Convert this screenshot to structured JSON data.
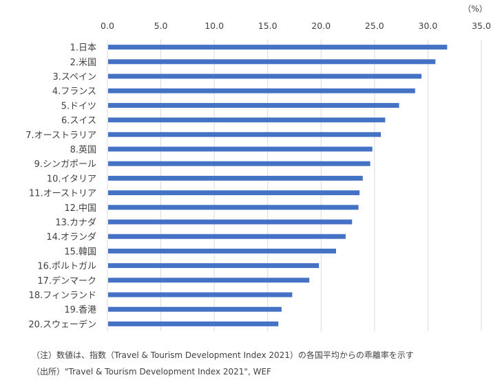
{
  "chart_data": {
    "type": "bar",
    "orientation": "horizontal",
    "title": "",
    "unit_label": "（%）",
    "xlim": [
      0,
      35
    ],
    "x_ticks": [
      "0.0",
      "5.0",
      "10.0",
      "15.0",
      "20.0",
      "25.0",
      "30.0",
      "35.0"
    ],
    "x_tick_values": [
      0,
      5,
      10,
      15,
      20,
      25,
      30,
      35
    ],
    "x_axis_position": "top",
    "grid": true,
    "bar_color": "#4472C4",
    "grid_color": "#D9D9D9",
    "categories": [
      "1.日本",
      "2.米国",
      "3.スペイン",
      "4.フランス",
      "5.ドイツ",
      "6.スイス",
      "7.オーストラリア",
      "8.英国",
      "9.シンガポール",
      "10.イタリア",
      "11.オーストリア",
      "12.中国",
      "13.カナダ",
      "14.オランダ",
      "15.韓国",
      "16.ポルトガル",
      "17.デンマーク",
      "18.フィンランド",
      "19.香港",
      "20.スウェーデン"
    ],
    "values": [
      31.8,
      30.7,
      29.4,
      28.8,
      27.3,
      26.0,
      25.6,
      24.8,
      24.6,
      23.9,
      23.6,
      23.5,
      22.9,
      22.3,
      21.4,
      19.8,
      18.9,
      17.3,
      16.3,
      16.0
    ]
  },
  "notes": {
    "note": "（注）数値は、指数（Travel & Tourism Development Index 2021）の各国平均からの乖離率を示す",
    "source": "（出所）\"Travel & Tourism Development Index 2021\", WEF"
  }
}
